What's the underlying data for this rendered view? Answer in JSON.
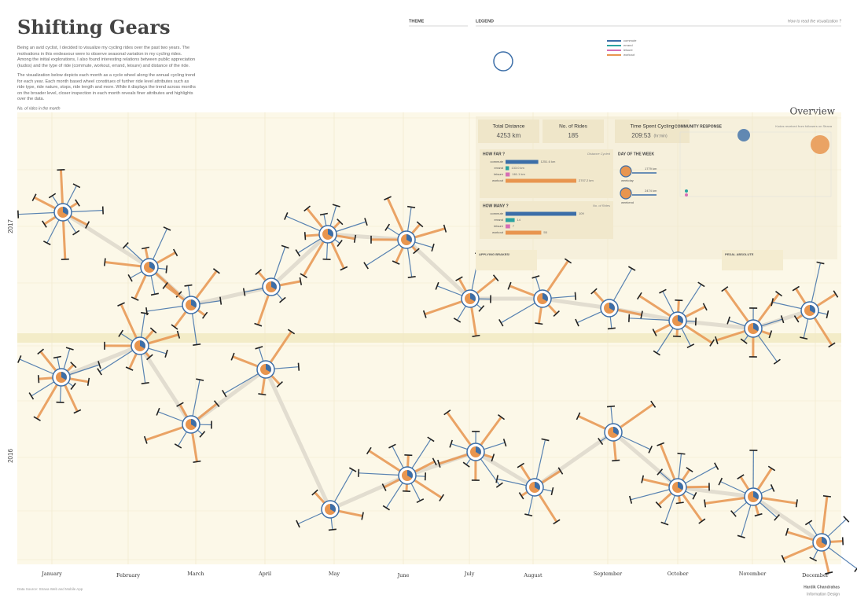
{
  "header": {
    "title": "Shifting Gears",
    "intro": [
      "Being an avid cyclist, I decided to visualize my cycling rides over the past two years. The motivations in this endeavour were to observe seasonal variation in my cycling rides. Among the initial explorations, I also found interesting relations between public appreciation (kudos) and the type of ride (commute, workout, errand, leisure) and distance of the ride.",
      "The visualization below depicts each month as a cycle wheel along the annual cycling trend for each year. Each month based wheel constitues of further ride level attributes such as ride type, ride nature, stops, ride length and more. While it displays the trend across months on the broader level, closer inspection in each month reveals finer attributes and highlights over the data."
    ]
  },
  "theme": {
    "title": "THEME"
  },
  "legend": {
    "title": "LEGEND",
    "howto": "How to read the visualization ?",
    "types": [
      "commute",
      "errand",
      "leisure",
      "workout"
    ]
  },
  "axis": {
    "label": "No. of rides in the month",
    "years": [
      "2017",
      "2016"
    ],
    "months": [
      "January",
      "February",
      "March",
      "April",
      "May",
      "June",
      "July",
      "August",
      "September",
      "October",
      "November",
      "December"
    ]
  },
  "overview": {
    "title": "Overview",
    "stats": [
      {
        "label": "Total Distance",
        "value": "4253 km"
      },
      {
        "label": "No. of Rides",
        "value": "185"
      },
      {
        "label": "Time Spent Cycling",
        "value": "209:53",
        "unit": "(hr:min)"
      }
    ],
    "how_far": {
      "title": "HOW FAR ?",
      "note": "Distance Cycled",
      "rows": [
        {
          "label": "commute",
          "value": "1251.6 km"
        },
        {
          "label": "errand",
          "value": "133.0 km"
        },
        {
          "label": "leisure",
          "value": "161.1 km"
        },
        {
          "label": "workout",
          "value": "2707.2 km"
        }
      ]
    },
    "how_many": {
      "title": "HOW MANY ?",
      "note": "No. of Rides",
      "rows": [
        {
          "label": "commute",
          "value": "109"
        },
        {
          "label": "errand",
          "value": "14"
        },
        {
          "label": "leisure",
          "value": "7"
        },
        {
          "label": "workout",
          "value": "55"
        }
      ]
    },
    "day_of_week": {
      "title": "DAY OF THE WEEK",
      "rows": [
        {
          "label": "weekday",
          "value": "1779 km"
        },
        {
          "label": "weekend",
          "value": "2474 km"
        }
      ]
    },
    "community": {
      "title": "COMMUNITY RESPONSE",
      "note": "Kudos received from followers on Strava"
    }
  },
  "annotations": [
    {
      "title": "APPLYING BRAKES!"
    },
    {
      "title": "PEDAL ABSOLUTE"
    }
  ],
  "footer": {
    "source": "Data Source: Strava Web and Mobile App",
    "author": "Hardik Chandrahas",
    "role": "Information Design"
  }
}
